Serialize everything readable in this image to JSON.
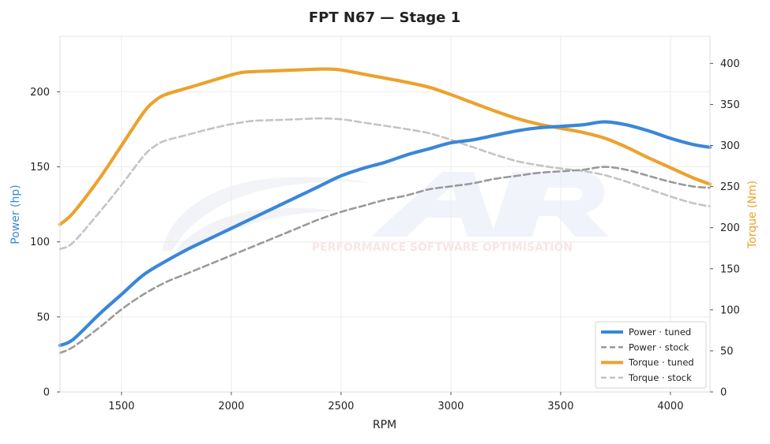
{
  "chart_data": {
    "type": "line",
    "title": "FPT N67 — Stage 1",
    "xlabel": "RPM",
    "ylabel_left": "Power (hp)",
    "ylabel_right": "Torque (Nm)",
    "xlim": [
      1220,
      4180
    ],
    "ylim_left": [
      0,
      237
    ],
    "ylim_right": [
      0,
      433
    ],
    "xticks": [
      "1500",
      "2000",
      "2500",
      "3000",
      "3500",
      "4000"
    ],
    "yticks_left": [
      "0",
      "50",
      "100",
      "150",
      "200"
    ],
    "yticks_right": [
      "0",
      "50",
      "100",
      "150",
      "200",
      "250",
      "300",
      "350",
      "400"
    ],
    "grid": true,
    "legend_position": "bottom-right",
    "watermark": {
      "logo": "AR",
      "text": "PERFORMANCE SOFTWARE OPTIMISATION"
    },
    "colors": {
      "power_tuned": "#3a87d8",
      "power_stock": "#9a9a9a",
      "torque_tuned": "#eca22e",
      "torque_stock": "#c4c4c4",
      "power_axis_label": "#3a87d8",
      "torque_axis_label": "#eca22e"
    },
    "series": [
      {
        "name": "Power · tuned",
        "axis": "left",
        "style": "solid",
        "x": [
          1220,
          1280,
          1400,
          1500,
          1600,
          1700,
          1800,
          1900,
          2000,
          2100,
          2200,
          2300,
          2400,
          2500,
          2600,
          2700,
          2800,
          2900,
          3000,
          3100,
          3200,
          3300,
          3400,
          3500,
          3600,
          3700,
          3800,
          3900,
          4000,
          4100,
          4180
        ],
        "values": [
          31,
          35,
          52,
          65,
          78,
          87,
          95,
          102,
          109,
          116,
          123,
          130,
          137,
          144,
          149,
          153,
          158,
          162,
          166,
          168,
          171,
          174,
          176,
          177,
          178,
          180,
          178,
          174,
          169,
          165,
          163
        ]
      },
      {
        "name": "Power · stock",
        "axis": "left",
        "style": "dashed",
        "x": [
          1220,
          1280,
          1400,
          1500,
          1600,
          1700,
          1800,
          1900,
          2000,
          2100,
          2200,
          2300,
          2400,
          2500,
          2600,
          2700,
          2800,
          2900,
          3000,
          3100,
          3200,
          3300,
          3400,
          3500,
          3600,
          3700,
          3800,
          3900,
          4000,
          4100,
          4180
        ],
        "values": [
          26,
          30,
          43,
          55,
          65,
          73,
          79,
          85,
          91,
          97,
          103,
          109,
          115,
          120,
          124,
          128,
          131,
          135,
          137,
          139,
          142,
          144,
          146,
          147,
          148,
          150,
          148,
          144,
          140,
          137,
          136
        ]
      },
      {
        "name": "Torque · tuned",
        "axis": "right",
        "style": "solid",
        "x": [
          1220,
          1280,
          1400,
          1500,
          1600,
          1650,
          1700,
          1800,
          1900,
          2000,
          2050,
          2100,
          2200,
          2300,
          2400,
          2450,
          2500,
          2600,
          2700,
          2800,
          2900,
          3000,
          3100,
          3200,
          3300,
          3400,
          3500,
          3600,
          3700,
          3800,
          3900,
          4000,
          4100,
          4180
        ],
        "values": [
          204,
          218,
          260,
          300,
          340,
          354,
          362,
          370,
          378,
          386,
          389,
          390,
          391,
          392,
          393,
          393,
          392,
          387,
          382,
          377,
          371,
          362,
          352,
          342,
          333,
          326,
          321,
          316,
          309,
          298,
          285,
          273,
          261,
          253
        ]
      },
      {
        "name": "Torque · stock",
        "axis": "right",
        "style": "dashed",
        "x": [
          1220,
          1280,
          1400,
          1500,
          1600,
          1650,
          1700,
          1800,
          1900,
          2000,
          2100,
          2200,
          2300,
          2400,
          2500,
          2600,
          2700,
          2800,
          2900,
          3000,
          3100,
          3200,
          3300,
          3400,
          3500,
          3600,
          3700,
          3800,
          3900,
          4000,
          4100,
          4180
        ],
        "values": [
          174,
          182,
          219,
          252,
          287,
          299,
          306,
          313,
          320,
          326,
          330,
          331,
          332,
          333,
          332,
          328,
          324,
          320,
          315,
          307,
          298,
          289,
          281,
          276,
          272,
          269,
          264,
          256,
          247,
          238,
          230,
          226
        ]
      }
    ]
  }
}
